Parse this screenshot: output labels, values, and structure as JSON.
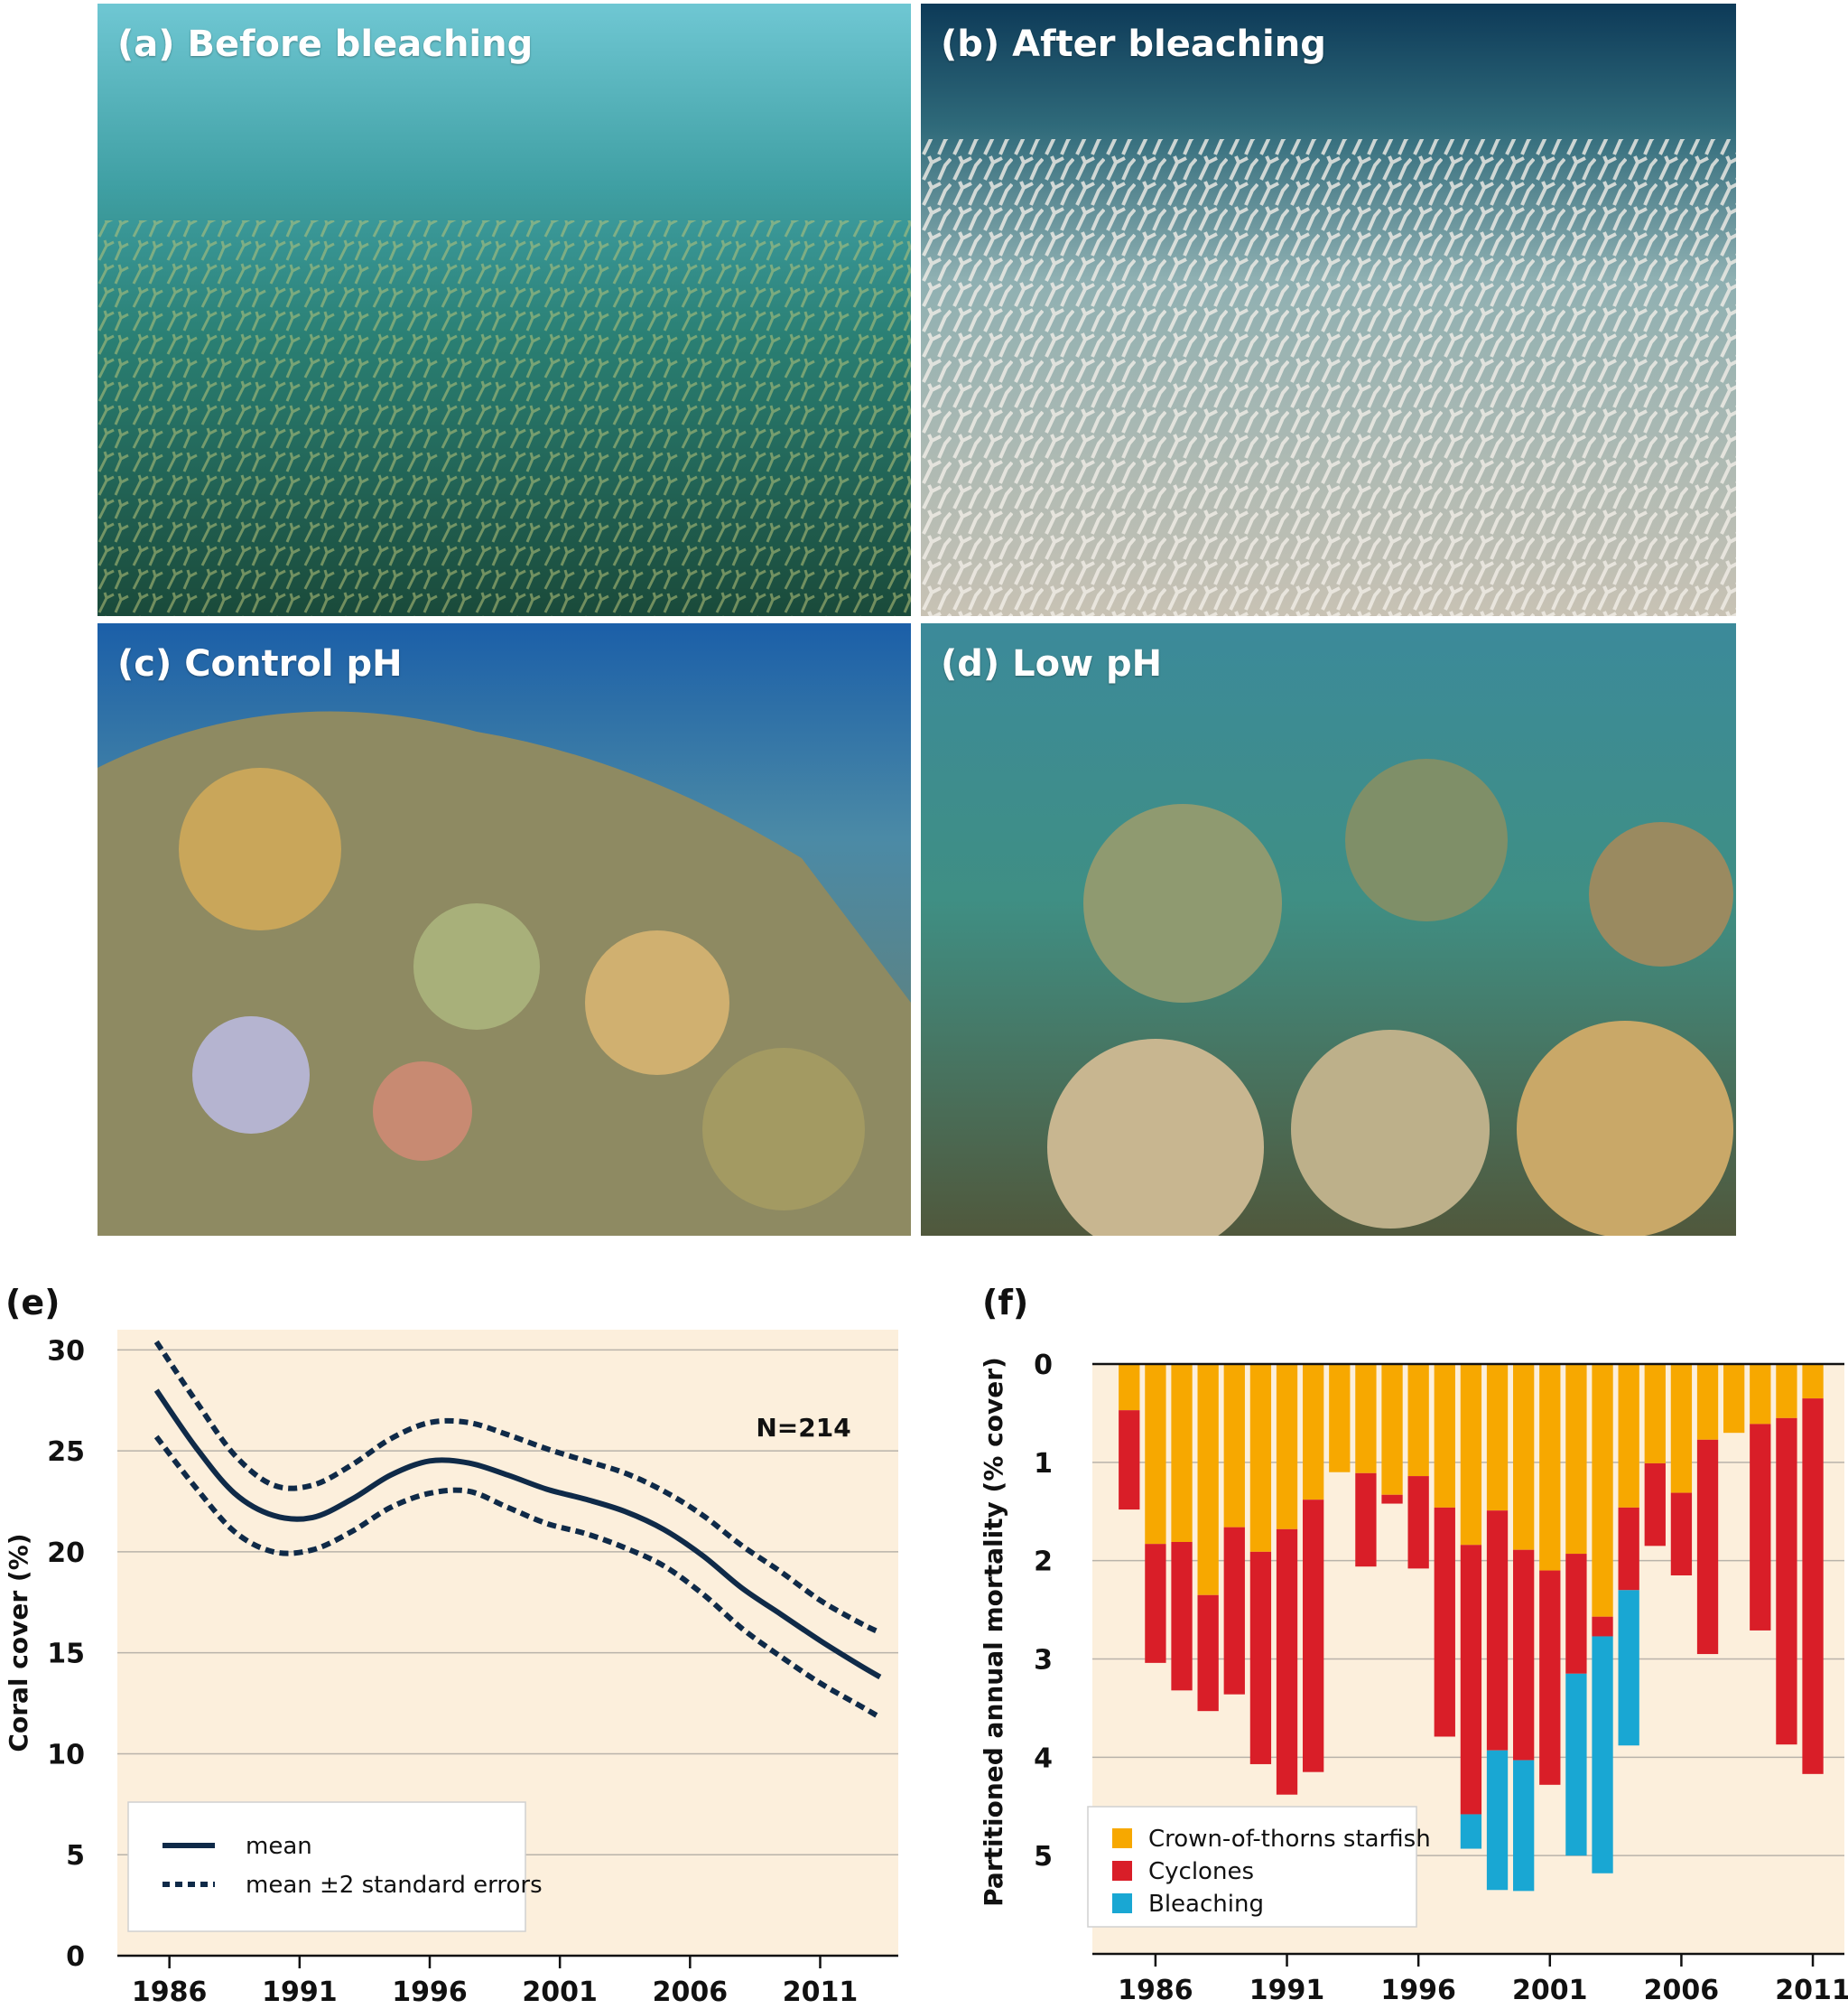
{
  "photos": [
    {
      "id": "a",
      "label": "(a) Before bleaching",
      "tone": "#2f8a86"
    },
    {
      "id": "b",
      "label": "(b) After bleaching",
      "tone": "#6e8f95"
    },
    {
      "id": "c",
      "label": "(c) Control pH",
      "tone": "#4a8aa6"
    },
    {
      "id": "d",
      "label": "(d) Low pH",
      "tone": "#4f9a9a"
    }
  ],
  "panel_e": {
    "tag": "(e)"
  },
  "panel_f": {
    "tag": "(f)"
  },
  "colors": {
    "chart_bg": "#fcefdc",
    "line": "#0f2a48",
    "grid": "#b9b3aa",
    "crown": "#f7a800",
    "cyclones": "#d91e28",
    "bleaching": "#19a7d3"
  },
  "chart_data": [
    {
      "type": "line",
      "title": "",
      "xlabel": "",
      "ylabel": "Coral cover (%)",
      "xlim": [
        1984,
        2014
      ],
      "ylim": [
        0,
        31
      ],
      "xticks": [
        1986,
        1991,
        1996,
        2001,
        2006,
        2011
      ],
      "yticks": [
        0,
        5,
        10,
        15,
        20,
        25,
        30
      ],
      "grid": true,
      "annotation": "N=214",
      "legend_position": "bottom-left",
      "series": [
        {
          "name": "mean",
          "style": "solid",
          "x": [
            1985.5,
            1987,
            1988.5,
            1990,
            1991.5,
            1993,
            1994.5,
            1996,
            1997.5,
            1999,
            2000.5,
            2002,
            2003.5,
            2005,
            2006.5,
            2008,
            2009.5,
            2011,
            2012.5,
            2013.3
          ],
          "y": [
            28.0,
            25.2,
            22.9,
            21.8,
            21.7,
            22.6,
            23.8,
            24.5,
            24.4,
            23.8,
            23.1,
            22.6,
            22.0,
            21.1,
            19.8,
            18.2,
            16.9,
            15.6,
            14.4,
            13.8
          ]
        },
        {
          "name": "mean ±2 standard errors",
          "style": "dotted",
          "x": [
            1985.5,
            1987,
            1988.5,
            1990,
            1991.5,
            1993,
            1994.5,
            1996,
            1997.5,
            1999,
            2000.5,
            2002,
            2003.5,
            2005,
            2006.5,
            2008,
            2009.5,
            2011,
            2012.5,
            2013.3
          ],
          "y": [
            30.4,
            27.5,
            24.8,
            23.3,
            23.3,
            24.3,
            25.6,
            26.4,
            26.4,
            25.8,
            25.1,
            24.5,
            23.9,
            23.0,
            21.8,
            20.3,
            19.0,
            17.6,
            16.5,
            16.0
          ]
        },
        {
          "name": "mean ±2 standard errors (lower)",
          "style": "dotted",
          "x": [
            1985.5,
            1987,
            1988.5,
            1990,
            1991.5,
            1993,
            1994.5,
            1996,
            1997.5,
            1999,
            2000.5,
            2002,
            2003.5,
            2005,
            2006.5,
            2008,
            2009.5,
            2011,
            2012.5,
            2013.3
          ],
          "y": [
            25.7,
            23.2,
            21.0,
            20.0,
            20.1,
            21.0,
            22.2,
            22.9,
            23.0,
            22.2,
            21.4,
            20.9,
            20.2,
            19.3,
            17.9,
            16.2,
            14.8,
            13.5,
            12.4,
            11.8
          ]
        }
      ]
    },
    {
      "type": "bar",
      "stacked": true,
      "orientation": "downward",
      "title": "",
      "xlabel": "",
      "ylabel": "Partitioned annual mortality (% cover)",
      "ylim": [
        0,
        6
      ],
      "yticks": [
        0,
        1,
        2,
        3,
        4,
        5
      ],
      "xlim": [
        1983.6,
        2012.2
      ],
      "xticks": [
        1986,
        1991,
        1996,
        2001,
        2006,
        2011
      ],
      "grid": true,
      "legend_position": "bottom-left",
      "categories": [
        1985,
        1986,
        1987,
        1988,
        1989,
        1990,
        1991,
        1992,
        1993,
        1994,
        1995,
        1996,
        1997,
        1998,
        1999,
        2000,
        2001,
        2002,
        2003,
        2004,
        2005,
        2006,
        2007,
        2008,
        2009,
        2010,
        2011
      ],
      "series": [
        {
          "name": "Crown-of-thorns starfish",
          "values": [
            0.47,
            1.83,
            1.81,
            2.35,
            1.66,
            1.91,
            1.68,
            1.38,
            1.1,
            1.11,
            1.33,
            1.14,
            1.46,
            1.84,
            1.49,
            1.89,
            2.1,
            1.93,
            2.57,
            1.46,
            1.01,
            1.31,
            0.77,
            0.7,
            0.61,
            0.55,
            0.35
          ]
        },
        {
          "name": "Cyclones",
          "values": [
            1.01,
            1.21,
            1.51,
            1.18,
            1.7,
            2.16,
            2.7,
            2.77,
            0,
            0.95,
            0.09,
            0.94,
            2.33,
            2.74,
            2.44,
            2.14,
            2.18,
            1.22,
            0.2,
            0.84,
            0.84,
            0.84,
            2.18,
            0,
            2.1,
            3.32,
            3.82
          ]
        },
        {
          "name": "Bleaching",
          "values": [
            0,
            0,
            0,
            0,
            0,
            0,
            0,
            0,
            0,
            0,
            0,
            0,
            0,
            0.35,
            1.42,
            1.33,
            0,
            1.85,
            2.41,
            1.58,
            0,
            0,
            0,
            0,
            0,
            0,
            0
          ]
        }
      ]
    }
  ]
}
